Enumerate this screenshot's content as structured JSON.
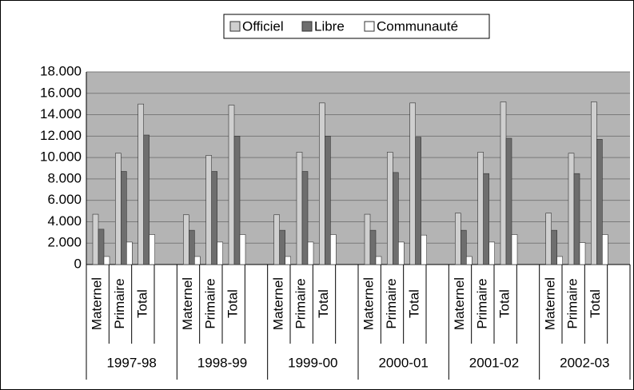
{
  "chart_data": {
    "type": "bar",
    "categories": [
      "Maternel",
      "Primaire",
      "Total",
      null,
      "Maternel",
      "Primaire",
      "Total",
      null,
      "Maternel",
      "Primaire",
      "Total",
      null,
      "Maternel",
      "Primaire",
      "Total",
      null,
      "Maternel",
      "Primaire",
      "Total",
      null,
      "Maternel",
      "Primaire",
      "Total",
      null
    ],
    "groups": [
      "1997-98",
      "1998-99",
      "1999-00",
      "2000-01",
      "2001-02",
      "2002-03"
    ],
    "series": [
      {
        "name": "Officiel",
        "color": "#cfcfcf",
        "values": [
          4700,
          10400,
          15000,
          null,
          4650,
          10200,
          14900,
          null,
          4650,
          10500,
          15100,
          null,
          4700,
          10500,
          15100,
          null,
          4800,
          10500,
          15200,
          null,
          4800,
          10400,
          15200,
          null
        ]
      },
      {
        "name": "Libre",
        "color": "#6e6e6e",
        "values": [
          3300,
          8700,
          12100,
          null,
          3200,
          8700,
          12000,
          null,
          3200,
          8700,
          12000,
          null,
          3200,
          8600,
          11900,
          null,
          3200,
          8500,
          11800,
          null,
          3200,
          8500,
          11700,
          null
        ]
      },
      {
        "name": "Communauté",
        "color": "#ffffff",
        "values": [
          750,
          2100,
          2800,
          null,
          750,
          2100,
          2800,
          null,
          750,
          2100,
          2800,
          null,
          750,
          2100,
          2750,
          null,
          750,
          2100,
          2800,
          null,
          750,
          2050,
          2800,
          null
        ]
      }
    ],
    "ylim": [
      0,
      18000
    ],
    "yticks": [
      0,
      {
        "value": 2000,
        "label": "2.000"
      },
      {
        "value": 4000,
        "label": "4.000"
      },
      {
        "value": 6000,
        "label": "6.000"
      },
      {
        "value": 8000,
        "label": "8.000"
      },
      {
        "value": 10000,
        "label": "10.000"
      },
      {
        "value": 12000,
        "label": "12.000"
      },
      {
        "value": 14000,
        "label": "14.000"
      },
      {
        "value": 16000,
        "label": "16.000"
      },
      {
        "value": 18000,
        "label": "18.000"
      }
    ],
    "grid": true,
    "legend": "top"
  }
}
